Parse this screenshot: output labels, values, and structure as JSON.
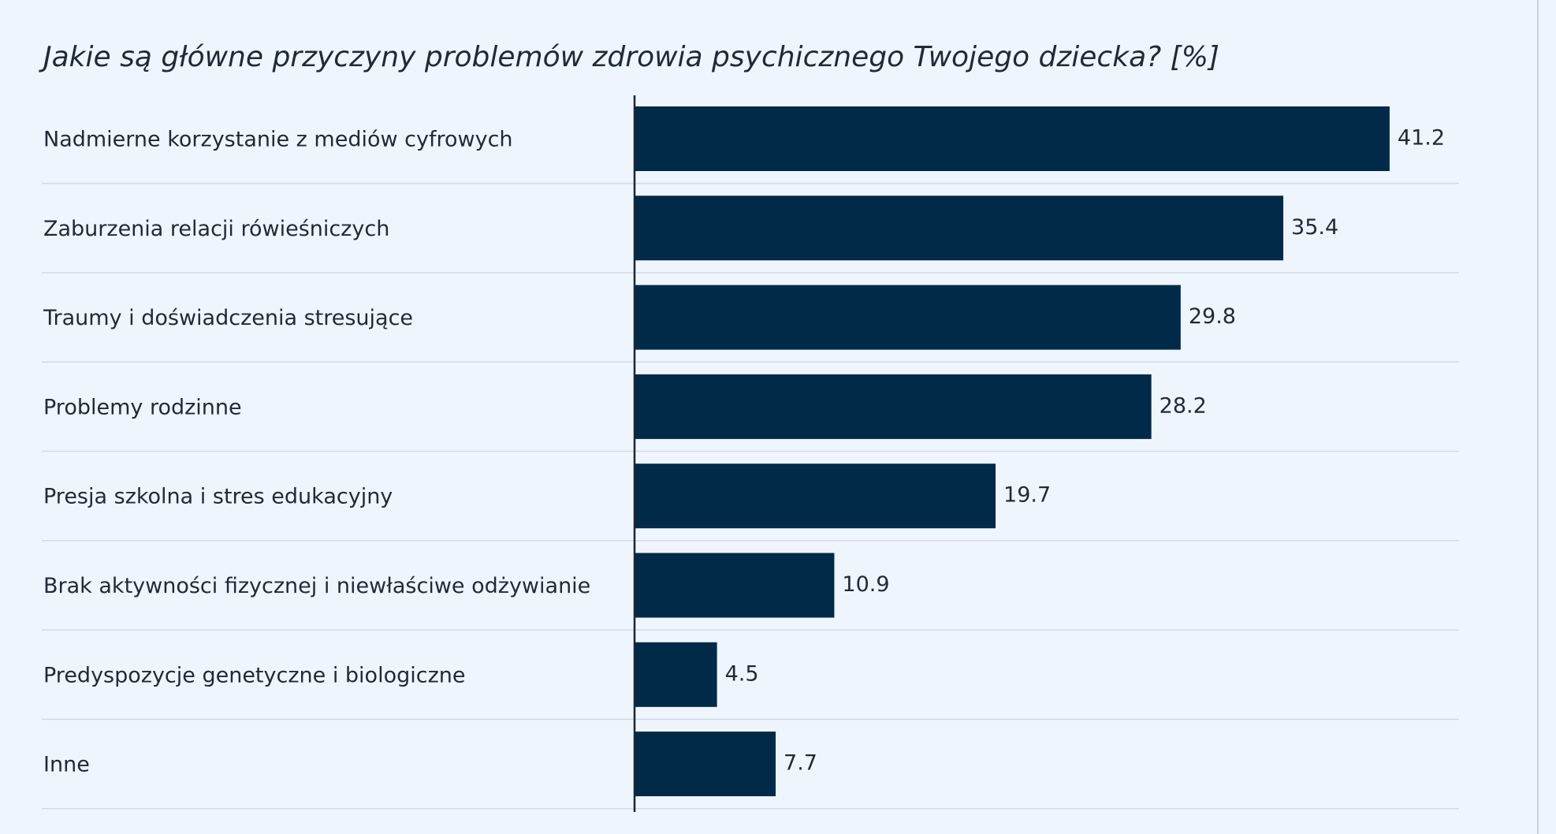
{
  "chart_data": {
    "type": "bar",
    "orientation": "horizontal",
    "title": "Jakie są główne przyczyny problemów zdrowia psychicznego Twojego dziecka? [%]",
    "categories": [
      "Nadmierne korzystanie z mediów cyfrowych",
      "Zaburzenia relacji rówieśniczych",
      "Traumy i doświadczenia stresujące",
      "Problemy rodzinne",
      "Presja szkolna i stres edukacyjny",
      "Brak aktywności fizycznej i niewłaściwe odżywianie",
      "Predyspozycje genetyczne i biologiczne",
      "Inne"
    ],
    "values": [
      41.2,
      35.4,
      29.8,
      28.2,
      19.7,
      10.9,
      4.5,
      7.7
    ],
    "color": "#002a47"
  }
}
